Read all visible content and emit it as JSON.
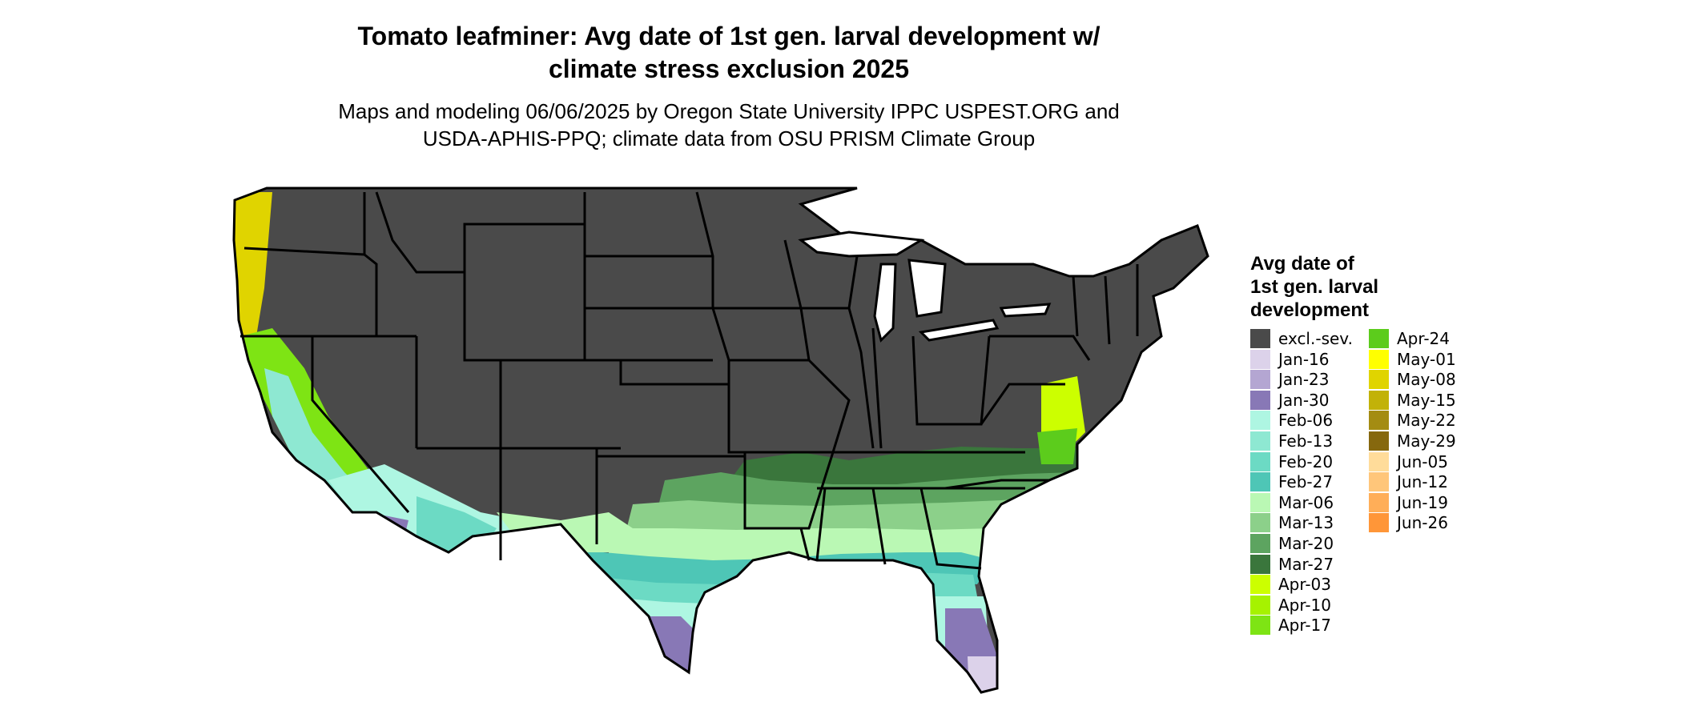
{
  "map": {
    "title_line1": "Tomato leafminer: Avg date of 1st gen. larval development w/",
    "title_line2": "climate stress exclusion 2025",
    "subtitle_line1": "Maps and modeling 06/06/2025 by Oregon State University IPPC USPEST.ORG and",
    "subtitle_line2": "USDA-APHIS-PPQ; climate data from OSU PRISM Climate Group",
    "region": "Contiguous United States",
    "excluded_color": "#4a4a4a",
    "border_color": "#000000"
  },
  "legend": {
    "title_line1": "Avg date of",
    "title_line2": "1st gen. larval",
    "title_line3": "development",
    "items": [
      {
        "label": "excl.-sev.",
        "color": "#4a4a4a"
      },
      {
        "label": "Jan-16",
        "color": "#dcd2ea"
      },
      {
        "label": "Jan-23",
        "color": "#b4a6d2"
      },
      {
        "label": "Jan-30",
        "color": "#8878b6"
      },
      {
        "label": "Feb-06",
        "color": "#aef6e2"
      },
      {
        "label": "Feb-13",
        "color": "#8ee8d2"
      },
      {
        "label": "Feb-20",
        "color": "#6cdac4"
      },
      {
        "label": "Feb-27",
        "color": "#4ec6b6"
      },
      {
        "label": "Mar-06",
        "color": "#baf8b4"
      },
      {
        "label": "Mar-13",
        "color": "#8cd08a"
      },
      {
        "label": "Mar-20",
        "color": "#5da460"
      },
      {
        "label": "Mar-27",
        "color": "#3a763c"
      },
      {
        "label": "Apr-03",
        "color": "#ccff00"
      },
      {
        "label": "Apr-10",
        "color": "#a6f200"
      },
      {
        "label": "Apr-17",
        "color": "#7ee414"
      },
      {
        "label": "Apr-24",
        "color": "#5ccc1c"
      },
      {
        "label": "May-01",
        "color": "#ffff00"
      },
      {
        "label": "May-08",
        "color": "#e0d400"
      },
      {
        "label": "May-15",
        "color": "#c2b208"
      },
      {
        "label": "May-22",
        "color": "#a48c12"
      },
      {
        "label": "May-29",
        "color": "#86680e"
      },
      {
        "label": "Jun-05",
        "color": "#ffdc9a"
      },
      {
        "label": "Jun-12",
        "color": "#ffc67a"
      },
      {
        "label": "Jun-19",
        "color": "#ffae58"
      },
      {
        "label": "Jun-26",
        "color": "#ff9638"
      }
    ]
  }
}
